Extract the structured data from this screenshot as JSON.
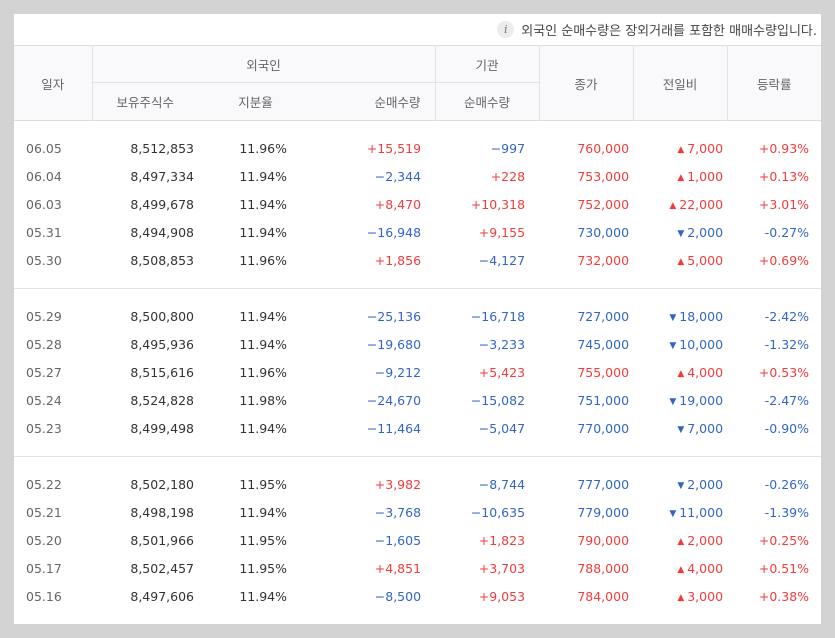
{
  "notice": {
    "icon": "info-icon",
    "text": "외국인 순매수량은 장외거래를 포함한 매매수량입니다."
  },
  "headers": {
    "date": "일자",
    "foreign": "외국인",
    "institution": "기관",
    "holdings": "보유주식수",
    "ratio": "지분율",
    "foreign_net": "순매수량",
    "inst_net": "순매수량",
    "close": "종가",
    "change": "전일비",
    "rate": "등락률"
  },
  "colors": {
    "up": "#f23c3c",
    "down": "#3465c4"
  },
  "groups": [
    [
      {
        "date": "06.05",
        "holdings": "8,512,853",
        "ratio": "11.96%",
        "foreign_net": "+15,519",
        "inst_net": "−997",
        "close": "760,000",
        "change": "7,000",
        "rate": "+0.93%",
        "dir": "up",
        "fdir": "up",
        "idir": "down"
      },
      {
        "date": "06.04",
        "holdings": "8,497,334",
        "ratio": "11.94%",
        "foreign_net": "−2,344",
        "inst_net": "+228",
        "close": "753,000",
        "change": "1,000",
        "rate": "+0.13%",
        "dir": "up",
        "fdir": "down",
        "idir": "up"
      },
      {
        "date": "06.03",
        "holdings": "8,499,678",
        "ratio": "11.94%",
        "foreign_net": "+8,470",
        "inst_net": "+10,318",
        "close": "752,000",
        "change": "22,000",
        "rate": "+3.01%",
        "dir": "up",
        "fdir": "up",
        "idir": "up"
      },
      {
        "date": "05.31",
        "holdings": "8,494,908",
        "ratio": "11.94%",
        "foreign_net": "−16,948",
        "inst_net": "+9,155",
        "close": "730,000",
        "change": "2,000",
        "rate": "-0.27%",
        "dir": "down",
        "fdir": "down",
        "idir": "up"
      },
      {
        "date": "05.30",
        "holdings": "8,508,853",
        "ratio": "11.96%",
        "foreign_net": "+1,856",
        "inst_net": "−4,127",
        "close": "732,000",
        "change": "5,000",
        "rate": "+0.69%",
        "dir": "up",
        "fdir": "up",
        "idir": "down"
      }
    ],
    [
      {
        "date": "05.29",
        "holdings": "8,500,800",
        "ratio": "11.94%",
        "foreign_net": "−25,136",
        "inst_net": "−16,718",
        "close": "727,000",
        "change": "18,000",
        "rate": "-2.42%",
        "dir": "down",
        "fdir": "down",
        "idir": "down"
      },
      {
        "date": "05.28",
        "holdings": "8,495,936",
        "ratio": "11.94%",
        "foreign_net": "−19,680",
        "inst_net": "−3,233",
        "close": "745,000",
        "change": "10,000",
        "rate": "-1.32%",
        "dir": "down",
        "fdir": "down",
        "idir": "down"
      },
      {
        "date": "05.27",
        "holdings": "8,515,616",
        "ratio": "11.96%",
        "foreign_net": "−9,212",
        "inst_net": "+5,423",
        "close": "755,000",
        "change": "4,000",
        "rate": "+0.53%",
        "dir": "up",
        "fdir": "down",
        "idir": "up"
      },
      {
        "date": "05.24",
        "holdings": "8,524,828",
        "ratio": "11.98%",
        "foreign_net": "−24,670",
        "inst_net": "−15,082",
        "close": "751,000",
        "change": "19,000",
        "rate": "-2.47%",
        "dir": "down",
        "fdir": "down",
        "idir": "down"
      },
      {
        "date": "05.23",
        "holdings": "8,499,498",
        "ratio": "11.94%",
        "foreign_net": "−11,464",
        "inst_net": "−5,047",
        "close": "770,000",
        "change": "7,000",
        "rate": "-0.90%",
        "dir": "down",
        "fdir": "down",
        "idir": "down"
      }
    ],
    [
      {
        "date": "05.22",
        "holdings": "8,502,180",
        "ratio": "11.95%",
        "foreign_net": "+3,982",
        "inst_net": "−8,744",
        "close": "777,000",
        "change": "2,000",
        "rate": "-0.26%",
        "dir": "down",
        "fdir": "up",
        "idir": "down"
      },
      {
        "date": "05.21",
        "holdings": "8,498,198",
        "ratio": "11.94%",
        "foreign_net": "−3,768",
        "inst_net": "−10,635",
        "close": "779,000",
        "change": "11,000",
        "rate": "-1.39%",
        "dir": "down",
        "fdir": "down",
        "idir": "down"
      },
      {
        "date": "05.20",
        "holdings": "8,501,966",
        "ratio": "11.95%",
        "foreign_net": "−1,605",
        "inst_net": "+1,823",
        "close": "790,000",
        "change": "2,000",
        "rate": "+0.25%",
        "dir": "up",
        "fdir": "down",
        "idir": "up"
      },
      {
        "date": "05.17",
        "holdings": "8,502,457",
        "ratio": "11.95%",
        "foreign_net": "+4,851",
        "inst_net": "+3,703",
        "close": "788,000",
        "change": "4,000",
        "rate": "+0.51%",
        "dir": "up",
        "fdir": "up",
        "idir": "up"
      },
      {
        "date": "05.16",
        "holdings": "8,497,606",
        "ratio": "11.94%",
        "foreign_net": "−8,500",
        "inst_net": "+9,053",
        "close": "784,000",
        "change": "3,000",
        "rate": "+0.38%",
        "dir": "up",
        "fdir": "down",
        "idir": "up"
      }
    ]
  ]
}
